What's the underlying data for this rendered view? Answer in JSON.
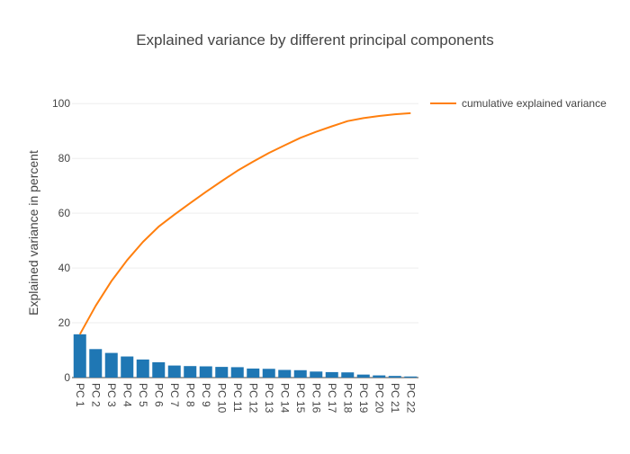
{
  "chart_data": {
    "type": "bar",
    "title": "Explained variance by different principal components",
    "xlabel": "",
    "ylabel": "Explained variance in percent",
    "ylim": [
      0,
      105
    ],
    "yticks": [
      0,
      20,
      40,
      60,
      80,
      100
    ],
    "categories": [
      "PC 1",
      "PC 2",
      "PC 3",
      "PC 4",
      "PC 5",
      "PC 6",
      "PC 7",
      "PC 8",
      "PC 9",
      "PC 10",
      "PC 11",
      "PC 12",
      "PC 13",
      "PC 14",
      "PC 15",
      "PC 16",
      "PC 17",
      "PC 18",
      "PC 19",
      "PC 20",
      "PC 21",
      "PC 22"
    ],
    "series": [
      {
        "type": "bar",
        "color": "#1f77b4",
        "values": [
          15.8,
          10.4,
          9.0,
          7.7,
          6.6,
          5.6,
          4.4,
          4.2,
          4.1,
          3.9,
          3.8,
          3.3,
          3.2,
          2.8,
          2.7,
          2.2,
          2.0,
          1.9,
          1.1,
          0.8,
          0.6,
          0.4
        ]
      },
      {
        "type": "line",
        "name": "cumulative explained variance",
        "color": "#ff7f0e",
        "values": [
          15.8,
          26.2,
          35.2,
          42.9,
          49.5,
          55.1,
          59.5,
          63.7,
          67.8,
          71.7,
          75.5,
          78.8,
          82.0,
          84.8,
          87.5,
          89.7,
          91.7,
          93.6,
          94.7,
          95.5,
          96.1,
          96.5
        ]
      }
    ],
    "legend_position": "top-right",
    "grid": true
  }
}
